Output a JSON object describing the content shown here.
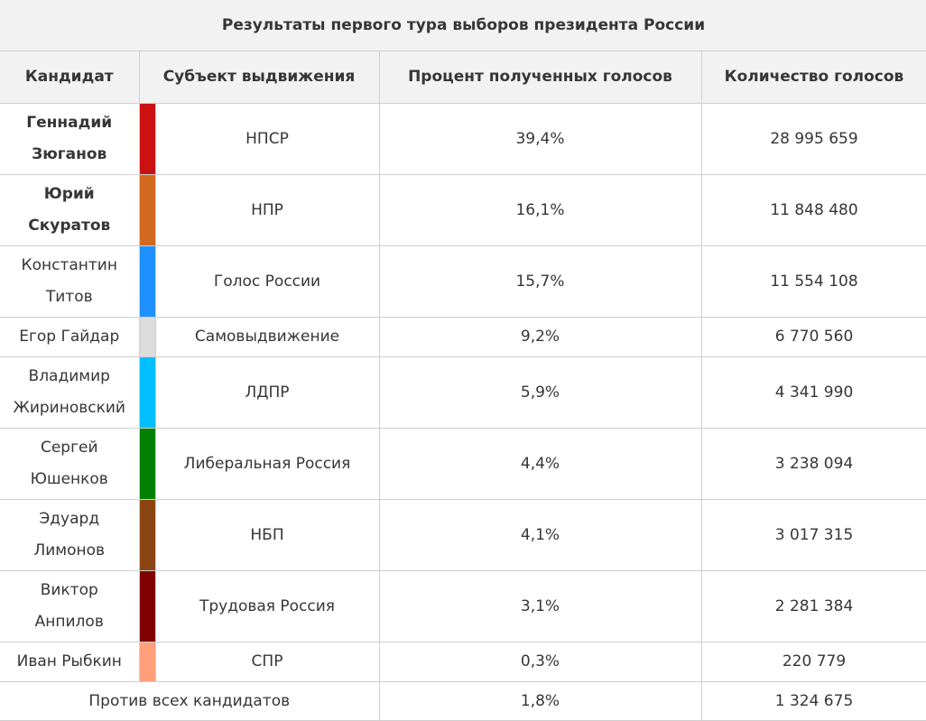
{
  "title": "Результаты первого тура выборов президента России",
  "headers": [
    "Кандидат",
    "Субъект выдвижения",
    "Процент полученных голосов",
    "Количество голосов"
  ],
  "rows": [
    {
      "candidate": "Геннадий Зюганов",
      "party": "НПСР",
      "percent": "39,4%",
      "votes": "28 995 659",
      "color": "#cc1111",
      "bold": true
    },
    {
      "candidate": "Юрий Скуратов",
      "party": "НПР",
      "percent": "16,1%",
      "votes": "11 848 480",
      "color": "#d2691e",
      "bold": true
    },
    {
      "candidate": "Константин Титов",
      "party": "Голос России",
      "percent": "15,7%",
      "votes": "11 554 108",
      "color": "#1e90ff"
    },
    {
      "candidate": "Егор Гайдар",
      "party": "Самовыдвижение",
      "percent": "9,2%",
      "votes": "6 770 560",
      "color": "#dcdcdc"
    },
    {
      "candidate": "Владимир Жириновский",
      "party": "ЛДПР",
      "percent": "5,9%",
      "votes": "4 341 990",
      "color": "#00bfff"
    },
    {
      "candidate": "Сергей Юшенков",
      "party": "Либеральная Россия",
      "percent": "4,4%",
      "votes": "3 238 094",
      "color": "#008000"
    },
    {
      "candidate": "Эдуард Лимонов",
      "party": "НБП",
      "percent": "4,1%",
      "votes": "3 017 315",
      "color": "#8b4513"
    },
    {
      "candidate": "Виктор Анпилов",
      "party": "Трудовая Россия",
      "percent": "3,1%",
      "votes": "2 281 384",
      "color": "#800000"
    },
    {
      "candidate": "Иван Рыбкин",
      "party": "СПР",
      "percent": "0,3%",
      "votes": "220 779",
      "color": "#ffa07a"
    }
  ],
  "against_all": {
    "label": "Против всех кандидатов",
    "percent": "1,8%",
    "votes": "1 324 675"
  }
}
